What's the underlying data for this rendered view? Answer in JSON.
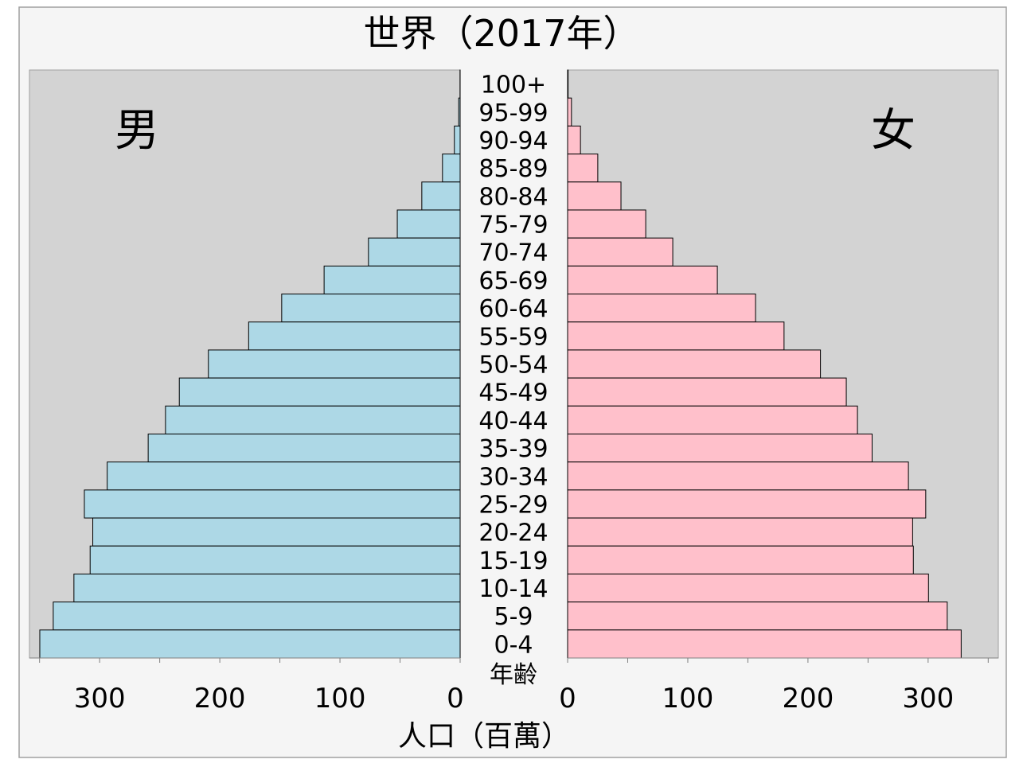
{
  "chart_data": {
    "type": "bar",
    "orientation": "horizontal-pyramid",
    "title": "世界（2017年）",
    "xlabel": "人口（百萬）",
    "category_label": "年齢",
    "xlim": [
      0,
      350
    ],
    "x_ticks": [
      0,
      100,
      200,
      300
    ],
    "grid": false,
    "categories": [
      "100+",
      "95-99",
      "90-94",
      "85-89",
      "80-84",
      "75-79",
      "70-74",
      "65-69",
      "60-64",
      "55-59",
      "50-54",
      "45-49",
      "40-44",
      "35-39",
      "30-34",
      "25-29",
      "20-24",
      "15-19",
      "10-14",
      "5-9",
      "0-4"
    ],
    "series": [
      {
        "name": "男",
        "side": "left",
        "color": "#add8e6",
        "values": [
          0.1,
          1.2,
          4.8,
          14.7,
          31.9,
          52.3,
          76.3,
          113.2,
          148.5,
          176.0,
          209.5,
          233.7,
          245.2,
          259.6,
          293.7,
          312.7,
          305.7,
          307.9,
          321.4,
          338.6,
          349.8
        ]
      },
      {
        "name": "女",
        "side": "right",
        "color": "#ffc0cb",
        "values": [
          0.4,
          3.2,
          10.7,
          25.1,
          44.4,
          65.0,
          87.5,
          124.6,
          156.4,
          180.1,
          210.4,
          231.9,
          241.2,
          253.4,
          283.6,
          298.0,
          287.1,
          287.7,
          300.3,
          315.9,
          327.5
        ]
      }
    ]
  },
  "colors": {
    "background": "#f5f5f5",
    "plot_background": "#d3d3d3",
    "frame": "#a0a0a0",
    "bar_stroke": "#000000"
  }
}
